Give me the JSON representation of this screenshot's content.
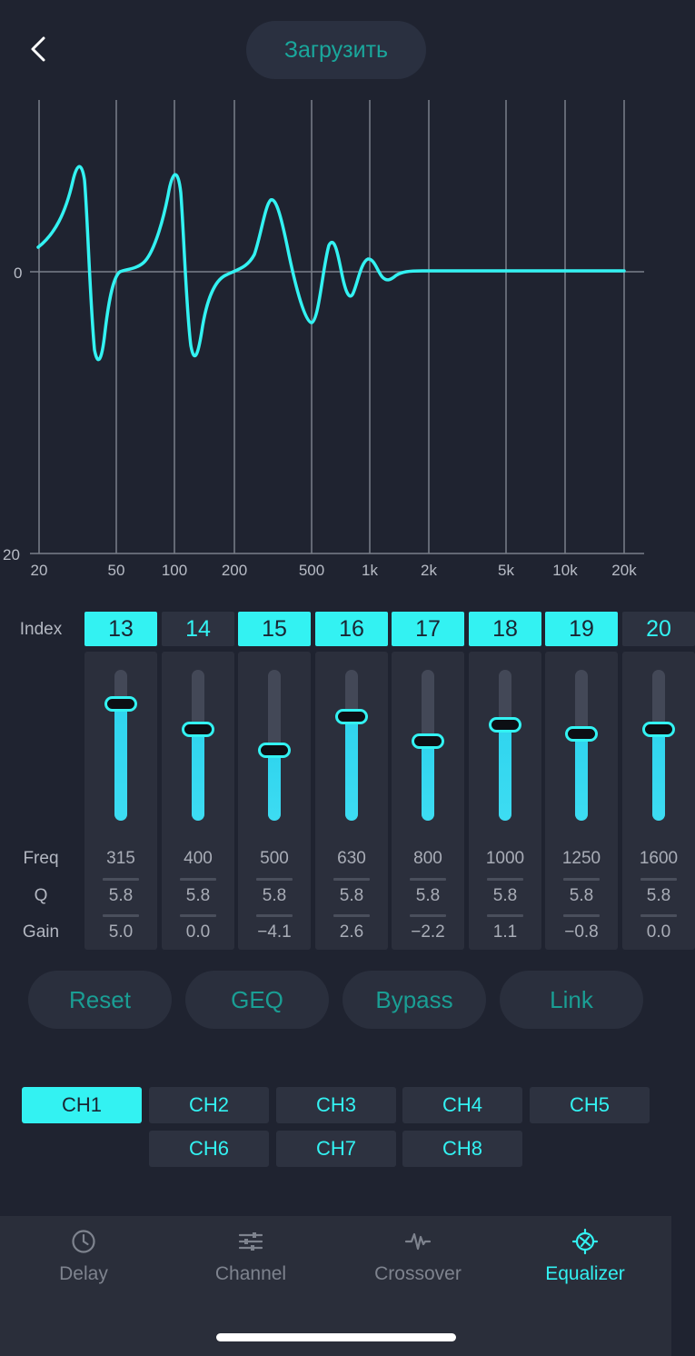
{
  "header": {
    "load_label": "Загрузить"
  },
  "graph": {
    "y_labels": [
      "0",
      "20"
    ],
    "x_labels": [
      "20",
      "50",
      "100",
      "200",
      "500",
      "1k",
      "2k",
      "5k",
      "10k",
      "20k"
    ],
    "line_color": "#33f2f2"
  },
  "rows": {
    "index": "Index",
    "freq": "Freq",
    "q": "Q",
    "gain": "Gain"
  },
  "bands": [
    {
      "index": "13",
      "freq": "315",
      "q": "5.8",
      "gain": "5.0",
      "active": true,
      "level": 0.78
    },
    {
      "index": "14",
      "freq": "400",
      "q": "5.8",
      "gain": "0.0",
      "active": false,
      "level": 0.61
    },
    {
      "index": "15",
      "freq": "500",
      "q": "5.8",
      "gain": "−4.1",
      "active": true,
      "level": 0.47
    },
    {
      "index": "16",
      "freq": "630",
      "q": "5.8",
      "gain": "2.6",
      "active": true,
      "level": 0.69
    },
    {
      "index": "17",
      "freq": "800",
      "q": "5.8",
      "gain": "−2.2",
      "active": true,
      "level": 0.53
    },
    {
      "index": "18",
      "freq": "1000",
      "q": "5.8",
      "gain": "1.1",
      "active": true,
      "level": 0.64
    },
    {
      "index": "19",
      "freq": "1250",
      "q": "5.8",
      "gain": "−0.8",
      "active": true,
      "level": 0.58
    },
    {
      "index": "20",
      "freq": "1600",
      "q": "5.8",
      "gain": "0.0",
      "active": false,
      "level": 0.61
    }
  ],
  "actions": [
    "Reset",
    "GEQ",
    "Bypass",
    "Link"
  ],
  "channels": [
    {
      "label": "CH1",
      "active": true
    },
    {
      "label": "CH2",
      "active": false
    },
    {
      "label": "CH3",
      "active": false
    },
    {
      "label": "CH4",
      "active": false
    },
    {
      "label": "CH5",
      "active": false
    },
    {
      "label": "CH6",
      "active": false
    },
    {
      "label": "CH7",
      "active": false
    },
    {
      "label": "CH8",
      "active": false
    }
  ],
  "tabs": [
    {
      "label": "Delay",
      "icon": "clock-icon",
      "active": false
    },
    {
      "label": "Channel",
      "icon": "sliders-icon",
      "active": false
    },
    {
      "label": "Crossover",
      "icon": "waveform-icon",
      "active": false
    },
    {
      "label": "Equalizer",
      "icon": "equalizer-icon",
      "active": true
    }
  ],
  "colors": {
    "accent": "#33f2f2",
    "accent_dim": "#1aa79c",
    "background": "#1f2330"
  }
}
